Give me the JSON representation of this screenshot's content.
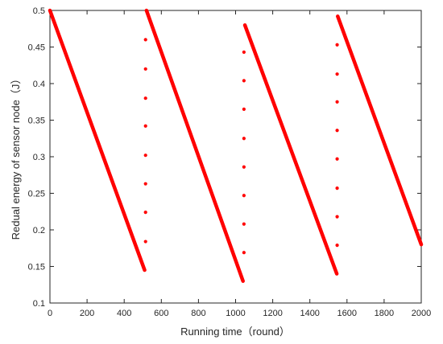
{
  "chart_data": {
    "type": "scatter",
    "xlabel": "Running time（round）",
    "ylabel": "Redual energy of sensor node（J）",
    "xlim": [
      0,
      2000
    ],
    "ylim": [
      0.1,
      0.5
    ],
    "xticks": [
      0,
      200,
      400,
      600,
      800,
      1000,
      1200,
      1400,
      1600,
      1800,
      2000
    ],
    "yticks": [
      0.1,
      0.15,
      0.2,
      0.25,
      0.3,
      0.35,
      0.4,
      0.45,
      0.5
    ],
    "xtick_labels": [
      "0",
      "200",
      "400",
      "600",
      "800",
      "1000",
      "1200",
      "1400",
      "1600",
      "1800",
      "2000"
    ],
    "ytick_labels": [
      "0.1",
      "0.15",
      "0.2",
      "0.25",
      "0.3",
      "0.35",
      "0.4",
      "0.45",
      "0.5"
    ],
    "grid": false,
    "color": "#ff0000",
    "segments": [
      {
        "x": [
          0,
          510
        ],
        "y": [
          0.5,
          0.145
        ]
      },
      {
        "x": [
          520,
          1040
        ],
        "y": [
          0.5,
          0.13
        ]
      },
      {
        "x": [
          1050,
          1545
        ],
        "y": [
          0.48,
          0.14
        ]
      },
      {
        "x": [
          1550,
          2000
        ],
        "y": [
          0.492,
          0.18
        ]
      }
    ],
    "dots": [
      {
        "x": 515,
        "y": [
          0.46,
          0.42,
          0.38,
          0.342,
          0.302,
          0.263,
          0.224,
          0.184
        ]
      },
      {
        "x": 1045,
        "y": [
          0.443,
          0.404,
          0.365,
          0.325,
          0.286,
          0.247,
          0.208,
          0.169
        ]
      },
      {
        "x": 1547,
        "y": [
          0.453,
          0.413,
          0.375,
          0.336,
          0.297,
          0.257,
          0.218,
          0.179
        ]
      }
    ]
  }
}
